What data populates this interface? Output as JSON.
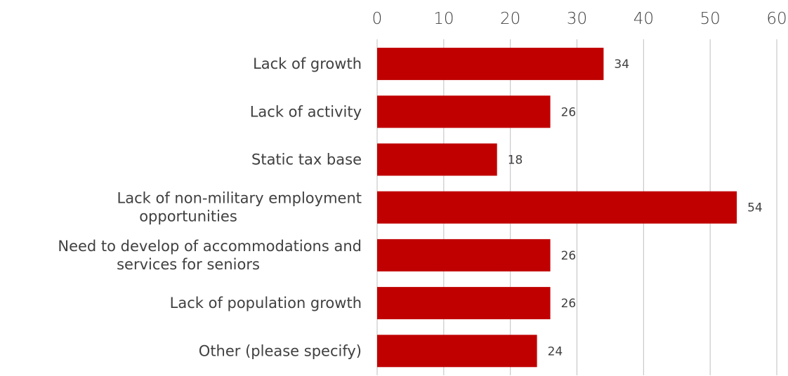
{
  "chart_data": {
    "type": "bar",
    "orientation": "horizontal",
    "categories": [
      [
        "Lack of growth"
      ],
      [
        "Lack of activity"
      ],
      [
        "Static tax base"
      ],
      [
        "Lack of non-military employment",
        "opportunities"
      ],
      [
        "Need to develop of accommodations and",
        "services for seniors"
      ],
      [
        "Lack of population growth"
      ],
      [
        "Other (please specify)"
      ]
    ],
    "values": [
      34,
      26,
      18,
      54,
      26,
      26,
      24
    ],
    "xlim": [
      0,
      60
    ],
    "ticks": [
      "0",
      "10",
      "20",
      "30",
      "40",
      "50",
      "60"
    ],
    "axis_position": "top",
    "grid": true,
    "bar_color": "#c00000",
    "data_labels": true
  }
}
